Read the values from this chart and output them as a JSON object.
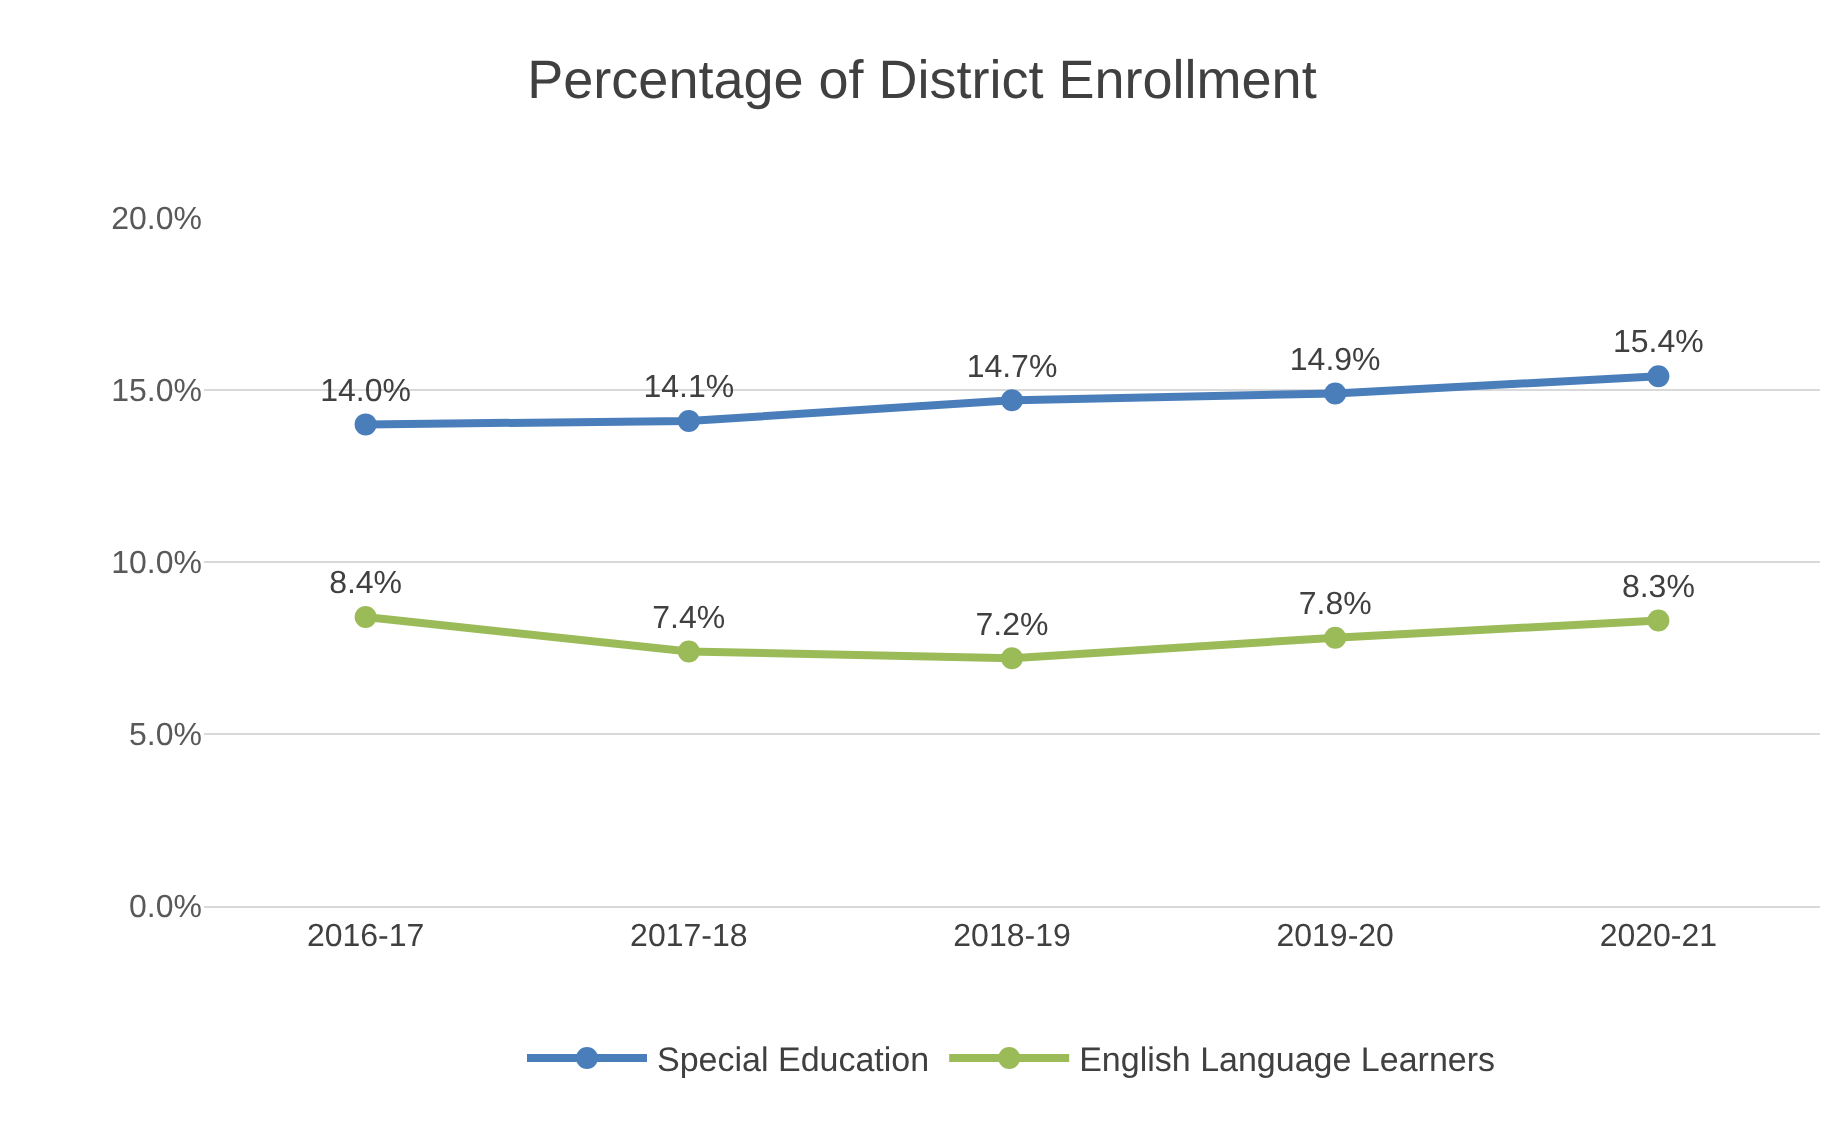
{
  "chart_data": {
    "type": "line",
    "title": "Percentage of District Enrollment",
    "categories": [
      "2016-17",
      "2017-18",
      "2018-19",
      "2019-20",
      "2020-21"
    ],
    "series": [
      {
        "name": "Special Education",
        "color": "#4a7ebb",
        "values": [
          14.0,
          14.1,
          14.7,
          14.9,
          15.4
        ],
        "value_labels": [
          "14.0%",
          "14.1%",
          "14.7%",
          "14.9%",
          "15.4%"
        ]
      },
      {
        "name": "English Language Learners",
        "color": "#9bbb59",
        "values": [
          8.4,
          7.4,
          7.2,
          7.8,
          8.3
        ],
        "value_labels": [
          "8.4%",
          "7.4%",
          "7.2%",
          "7.8%",
          "8.3%"
        ]
      }
    ],
    "ylim": [
      0,
      20
    ],
    "yticks": [
      {
        "value": 0,
        "label": "0.0%"
      },
      {
        "value": 5,
        "label": "5.0%"
      },
      {
        "value": 10,
        "label": "10.0%"
      },
      {
        "value": 15,
        "label": "15.0%"
      },
      {
        "value": 20,
        "label": "20.0%"
      }
    ],
    "grid": "y",
    "legend": "bottom",
    "marker": "circle",
    "line_style": "solid"
  }
}
